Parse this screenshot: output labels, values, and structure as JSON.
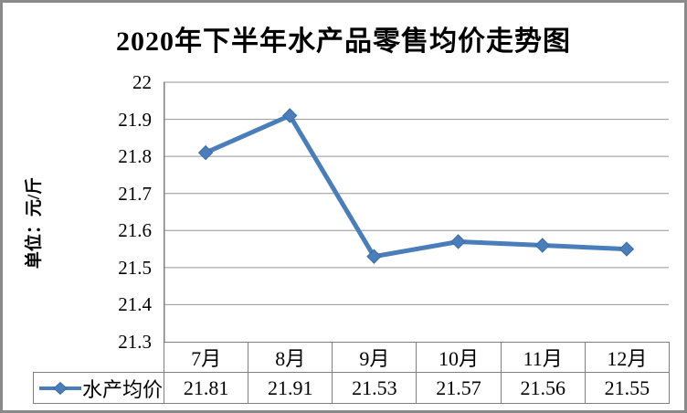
{
  "chart_data": {
    "type": "line",
    "title": "2020年下半年水产品零售均价走势图",
    "ylabel": "单位：元/斤",
    "categories": [
      "7月",
      "8月",
      "9月",
      "10月",
      "11月",
      "12月"
    ],
    "series": [
      {
        "name": "水产均价",
        "values": [
          21.81,
          21.91,
          21.53,
          21.57,
          21.56,
          21.55
        ]
      }
    ],
    "ylim": [
      21.3,
      22
    ],
    "ytick_labels": [
      "22",
      "21.9",
      "21.8",
      "21.7",
      "21.6",
      "21.5",
      "21.4",
      "21.3"
    ],
    "grid": true,
    "legend_position": "table-left",
    "value_decimals": 2,
    "colors": {
      "line": "#4a7ebb",
      "marker": "#4a7ebb",
      "marker_edge": "#3c6ba8",
      "gridline": "#949494",
      "axis": "#7f7f7f",
      "table_border": "#7f7f7f",
      "frame_border": "#8a8a8a",
      "text": "#000000"
    }
  }
}
